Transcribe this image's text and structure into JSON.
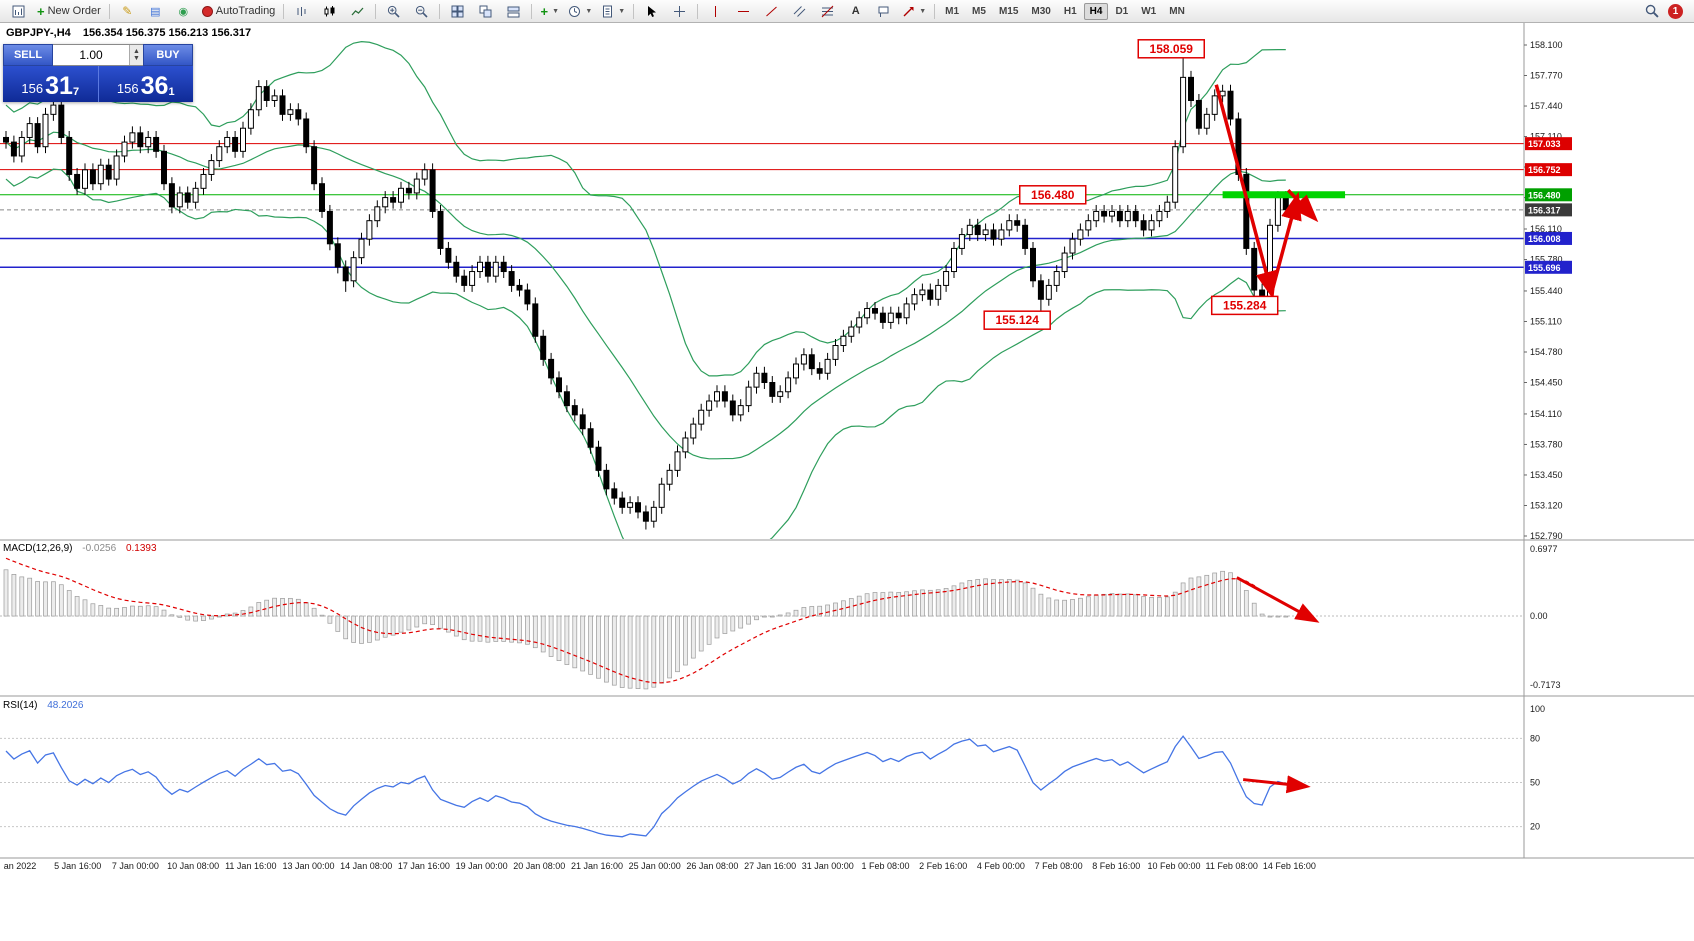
{
  "toolbar": {
    "new_order_label": "New Order",
    "autotrading_label": "AutoTrading",
    "timeframes": [
      "M1",
      "M5",
      "M15",
      "M30",
      "H1",
      "H4",
      "D1",
      "W1",
      "MN"
    ],
    "active_timeframe": "H4",
    "notification_badge": "1",
    "text_tool_label": "A"
  },
  "chart_header": {
    "symbol_period": "GBPJPY-,H4",
    "ohlc": "156.354 156.375 156.213 156.317"
  },
  "trade_panel": {
    "sell_label": "SELL",
    "buy_label": "BUY",
    "lot_value": "1.00",
    "spin_up": "▲",
    "spin_down": "▼",
    "sell_price_prefix": "156",
    "sell_price_big": "31",
    "sell_price_sup": "7",
    "buy_price_prefix": "156",
    "buy_price_big": "36",
    "buy_price_sup": "1"
  },
  "chart_data": {
    "type": "candlestick",
    "title": "GBPJPY-,H4",
    "symbol": "GBPJPY-",
    "period": "H4",
    "current_bar": {
      "open": "156.354",
      "high": "156.375",
      "low": "156.213",
      "close": "156.317"
    },
    "y_axis": {
      "top_price": 158.1,
      "bottom_price": 152.79,
      "ticks": [
        "158.100",
        "157.770",
        "157.440",
        "157.110",
        "156.780",
        "156.450",
        "156.110",
        "155.780",
        "155.440",
        "155.110",
        "154.780",
        "154.450",
        "154.110",
        "153.780",
        "153.450",
        "153.120",
        "152.790"
      ]
    },
    "x_axis": {
      "labels": [
        "an 2022",
        "5 Jan 16:00",
        "7 Jan 00:00",
        "10 Jan 08:00",
        "11 Jan 16:00",
        "13 Jan 00:00",
        "14 Jan 08:00",
        "17 Jan 16:00",
        "19 Jan 00:00",
        "20 Jan 08:00",
        "21 Jan 16:00",
        "25 Jan 00:00",
        "26 Jan 08:00",
        "27 Jan 16:00",
        "31 Jan 00:00",
        "1 Feb 08:00",
        "2 Feb 16:00",
        "4 Feb 00:00",
        "7 Feb 08:00",
        "8 Feb 16:00",
        "10 Feb 00:00",
        "11 Feb 08:00",
        "14 Feb 16:00"
      ]
    },
    "candles": {
      "first_open": 157.1,
      "default_wick": 0.07,
      "closes": [
        157.05,
        156.9,
        157.1,
        157.25,
        157.0,
        157.35,
        157.45,
        157.1,
        156.7,
        156.55,
        156.75,
        156.6,
        156.8,
        156.65,
        156.9,
        157.05,
        157.15,
        157.0,
        157.1,
        156.95,
        156.6,
        156.35,
        156.5,
        156.4,
        156.55,
        156.7,
        156.85,
        157.0,
        157.1,
        156.95,
        157.2,
        157.4,
        157.65,
        157.5,
        157.55,
        157.35,
        157.4,
        157.3,
        157.0,
        156.6,
        156.3,
        155.95,
        155.7,
        155.55,
        155.8,
        156.0,
        156.2,
        156.35,
        156.45,
        156.4,
        156.55,
        156.5,
        156.65,
        156.75,
        156.3,
        155.9,
        155.75,
        155.6,
        155.5,
        155.65,
        155.75,
        155.6,
        155.75,
        155.65,
        155.5,
        155.45,
        155.3,
        154.95,
        154.7,
        154.5,
        154.35,
        154.2,
        154.1,
        153.95,
        153.75,
        153.5,
        153.3,
        153.2,
        153.1,
        153.15,
        153.05,
        152.95,
        153.1,
        153.35,
        153.5,
        153.7,
        153.85,
        154.0,
        154.15,
        154.25,
        154.35,
        154.25,
        154.1,
        154.2,
        154.4,
        154.55,
        154.45,
        154.3,
        154.35,
        154.5,
        154.65,
        154.75,
        154.6,
        154.55,
        154.7,
        154.85,
        154.95,
        155.05,
        155.15,
        155.25,
        155.2,
        155.1,
        155.2,
        155.15,
        155.3,
        155.4,
        155.45,
        155.35,
        155.5,
        155.65,
        155.9,
        156.05,
        156.15,
        156.05,
        156.1,
        156.0,
        156.1,
        156.2,
        156.15,
        155.9,
        155.55,
        155.35,
        155.5,
        155.65,
        155.85,
        156.0,
        156.1,
        156.2,
        156.3,
        156.25,
        156.3,
        156.2,
        156.3,
        156.2,
        156.1,
        156.2,
        156.3,
        156.4,
        157.0,
        157.75,
        157.5,
        157.2,
        157.35,
        157.55,
        157.6,
        157.3,
        156.7,
        155.9,
        155.45,
        155.35,
        156.15,
        156.45,
        156.32
      ],
      "wick_overrides": {
        "6": [
          157.55,
          null
        ],
        "32": [
          157.72,
          null
        ],
        "43": [
          null,
          155.43
        ],
        "81": [
          null,
          152.86
        ],
        "131": [
          null,
          155.124
        ],
        "149": [
          158.059,
          null
        ],
        "159": [
          null,
          155.284
        ]
      }
    },
    "overlays": {
      "bollinger": {
        "period": 20,
        "deviation": 2,
        "color": "#2e9e5c"
      },
      "hlines": [
        {
          "price": 157.033,
          "color": "#dd0000",
          "width": 1
        },
        {
          "price": 156.752,
          "color": "#dd0000",
          "width": 1
        },
        {
          "price": 156.48,
          "color": "#00b300",
          "width": 1
        },
        {
          "price": 156.317,
          "color": "#888888",
          "width": 1,
          "dash": "4,3"
        },
        {
          "price": 156.008,
          "color": "#2222cc",
          "width": 1.5
        },
        {
          "price": 155.696,
          "color": "#2222cc",
          "width": 1.5
        }
      ],
      "highlight_segment": {
        "price": 156.48,
        "from_bar": 154,
        "to_bar": 169.5,
        "color": "#00d400",
        "width": 7
      },
      "price_tags": [
        {
          "text": "157.033",
          "price": 157.033,
          "bg": "#dd0000"
        },
        {
          "text": "156.752",
          "price": 156.752,
          "bg": "#dd0000"
        },
        {
          "text": "156.480",
          "price": 156.48,
          "bg": "#00a000"
        },
        {
          "text": "156.317",
          "price": 156.317,
          "bg": "#3a3a3a"
        },
        {
          "text": "156.008",
          "price": 156.008,
          "bg": "#2222cc"
        },
        {
          "text": "155.696",
          "price": 155.696,
          "bg": "#2222cc"
        }
      ]
    },
    "annotations": {
      "labels": [
        {
          "text": "158.059",
          "bar": 147.5,
          "price": 158.059
        },
        {
          "text": "156.480",
          "bar": 132.5,
          "price": 156.48
        },
        {
          "text": "155.124",
          "bar": 128.0,
          "price": 155.124
        },
        {
          "text": "155.284",
          "bar": 156.8,
          "price": 155.284
        }
      ],
      "arrows_main": [
        {
          "from": [
            153.2,
            157.67
          ],
          "to": [
            160.2,
            155.42
          ]
        },
        {
          "from": [
            160.2,
            155.42
          ],
          "to": [
            163.4,
            156.44
          ]
        },
        {
          "from": [
            162.3,
            156.53
          ],
          "to": [
            165.5,
            156.24
          ]
        }
      ],
      "arrow_macd": {
        "from": [
          155.8,
          0.4
        ],
        "to": [
          165.6,
          -0.04
        ]
      },
      "arrow_rsi": {
        "from": [
          156.6,
          52
        ],
        "to": [
          164.4,
          47.5
        ]
      }
    },
    "macd": {
      "label": "MACD(12,26,9)",
      "value": "-0.0256",
      "signal": "0.1393",
      "params": [
        12,
        26,
        9
      ],
      "max": 0.6977,
      "min": -0.7173,
      "scale_labels": {
        "max": "0.6977",
        "zero": "0.00",
        "min": "-0.7173"
      },
      "seed_bias": 0.52,
      "signal_seed_bias": 0.15,
      "histogram_color": "#ececec",
      "histogram_stroke": "#9a9a9a",
      "signal_color": "#e00000"
    },
    "rsi": {
      "label": "RSI(14)",
      "value": "48.2026",
      "period": 14,
      "levels": [
        80,
        50,
        20
      ],
      "scale_labels": [
        "100",
        "80",
        "50",
        "20"
      ],
      "color": "#4575e5",
      "seed_gain": 0.1,
      "seed_loss": 0.04
    }
  }
}
